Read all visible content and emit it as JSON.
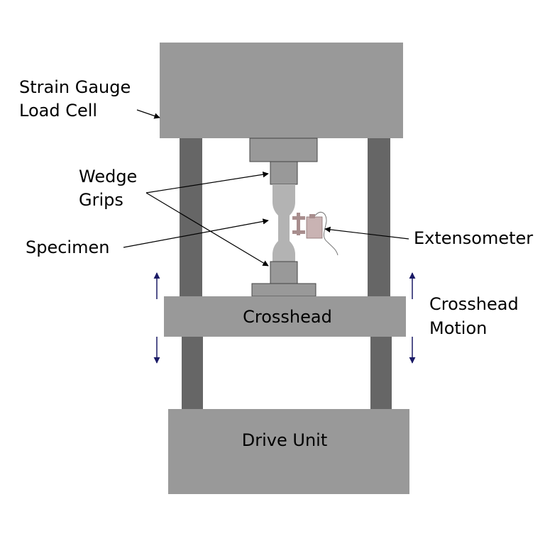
{
  "labels": {
    "load_cell_line1": "Strain Gauge",
    "load_cell_line2": "Load Cell",
    "wedge_grips_line1": "Wedge",
    "wedge_grips_line2": "Grips",
    "specimen": "Specimen",
    "extensometer": "Extensometer",
    "crosshead": "Crosshead",
    "crosshead_motion_line1": "Crosshead",
    "crosshead_motion_line2": "Motion",
    "drive_unit": "Drive Unit"
  },
  "colors": {
    "frame_light": "#999999",
    "frame_column": "#666666",
    "specimen": "#b3b3b3",
    "extensometer": "#c9b3b3",
    "extensometer_dark": "#a88e8e",
    "motion_arrow": "#1a1a66"
  }
}
